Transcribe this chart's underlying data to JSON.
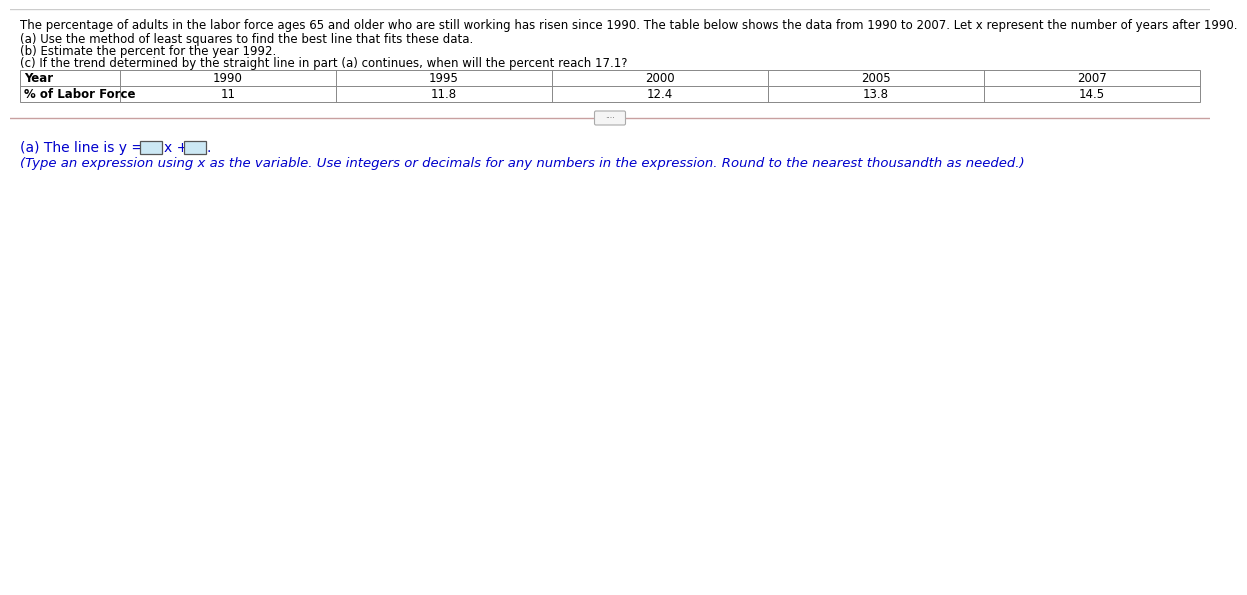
{
  "header_text": "The percentage of adults in the labor force ages 65 and older who are still working has risen since 1990. The table below shows the data from 1990 to 2007. Let x represent the number of years after 1990.",
  "bullet_a": "(a) Use the method of least squares to find the best line that fits these data.",
  "bullet_b": "(b) Estimate the percent for the year 1992.",
  "bullet_c_prefix": "(c) If the trend determined by the straight line in part ",
  "bullet_c_bold": "(a)",
  "bullet_c_suffix": " continues, when will the percent reach 17.1?",
  "table_row1_label": "Year",
  "table_row2_label": "% of Labor Force",
  "table_years": [
    "1990",
    "1995",
    "2000",
    "2005",
    "2007"
  ],
  "table_values": [
    "11",
    "11.8",
    "12.4",
    "13.8",
    "14.5"
  ],
  "answer_prefix": "(a) The line is y =",
  "answer_xplus": "x +",
  "answer_dot": ".",
  "answer_instruction": "(Type an expression using x as the variable. Use integers or decimals for any numbers in the expression. Round to the nearest thousandth as needed.)",
  "bg_color": "#ffffff",
  "text_color": "#000000",
  "blue_color": "#0000cc",
  "table_border_color": "#888888",
  "answer_box_border": "#555555",
  "answer_box_fill": "#cce8f4",
  "divider_color": "#c8a0a0",
  "scroll_btn_border": "#aaaaaa",
  "scroll_btn_fill": "#f5f5f5",
  "font_size_header": 8.5,
  "font_size_table": 8.5,
  "font_size_answer": 10,
  "font_size_instruction": 9.5
}
